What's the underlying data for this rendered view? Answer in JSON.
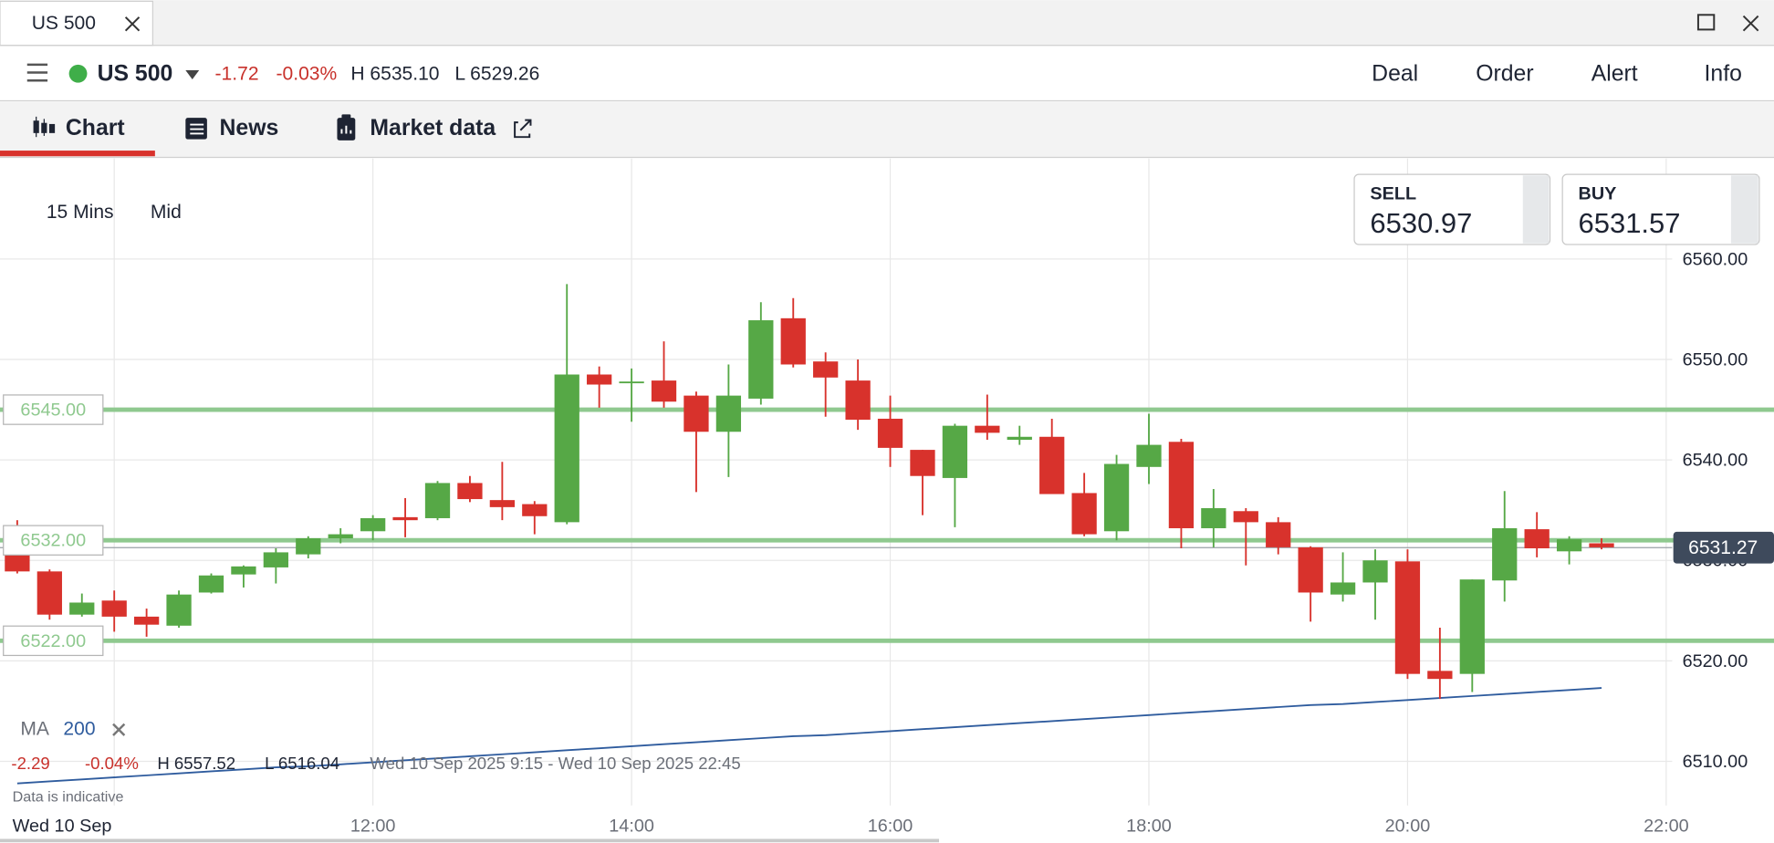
{
  "window": {
    "tab": "US 500"
  },
  "toolbar": {
    "market": "US 500",
    "change": "-1.72",
    "change_pct": "-0.03%",
    "high": "H 6535.10",
    "low": "L 6529.26",
    "actions": [
      "Deal",
      "Order",
      "Alert",
      "Info"
    ]
  },
  "tabs": [
    "Chart",
    "News",
    "Market data"
  ],
  "chart_controls": {
    "interval": "15 Mins",
    "price_type": "Mid"
  },
  "quote": {
    "sell_label": "SELL",
    "sell": "6530.97",
    "buy_label": "BUY",
    "buy": "6531.57"
  },
  "stats": {
    "change": "-2.29",
    "change_pct": "-0.04%",
    "high": "H 6557.52",
    "low": "L 6516.04",
    "range": "Wed 10 Sep 2025 9:15 - Wed 10 Sep 2025 22:45"
  },
  "note": "Data is indicative",
  "chart_data": {
    "type": "candlestick",
    "x": [
      "09:15",
      "09:30",
      "09:45",
      "10:00",
      "10:15",
      "10:30",
      "10:45",
      "11:00",
      "11:15",
      "11:30",
      "11:45",
      "12:00",
      "12:15",
      "12:30",
      "12:45",
      "13:00",
      "13:15",
      "13:30",
      "13:45",
      "14:00",
      "14:15",
      "14:30",
      "14:45",
      "15:00",
      "15:15",
      "15:30",
      "15:45",
      "16:00",
      "16:15",
      "16:30",
      "16:45",
      "17:00",
      "17:15",
      "17:30",
      "17:45",
      "18:00",
      "18:15",
      "18:30",
      "18:45",
      "19:00",
      "19:15",
      "19:30",
      "19:45",
      "20:00",
      "20:15",
      "20:30",
      "20:45",
      "21:00",
      "21:15",
      "21:30"
    ],
    "open": [
      6532.0,
      6528.9,
      6524.6,
      6526.0,
      6524.4,
      6523.5,
      6526.8,
      6528.6,
      6529.3,
      6530.6,
      6532.2,
      6532.9,
      6534.3,
      6534.2,
      6537.7,
      6536.0,
      6535.6,
      6533.8,
      6548.5,
      6547.7,
      6547.9,
      6546.4,
      6542.8,
      6546.1,
      6554.1,
      6549.8,
      6547.9,
      6544.1,
      6541.0,
      6538.2,
      6543.4,
      6542.0,
      6542.3,
      6536.7,
      6532.9,
      6539.3,
      6541.8,
      6533.2,
      6534.9,
      6533.8,
      6531.3,
      6526.6,
      6527.8,
      6529.9,
      6519.0,
      6518.7,
      6528.0,
      6533.1,
      6530.9,
      6531.7
    ],
    "high": [
      6534.0,
      6529.1,
      6526.7,
      6527.0,
      6525.2,
      6527.0,
      6528.7,
      6529.5,
      6531.2,
      6532.4,
      6533.2,
      6534.5,
      6536.2,
      6537.9,
      6538.4,
      6539.8,
      6535.9,
      6557.5,
      6549.3,
      6549.1,
      6551.8,
      6546.8,
      6549.5,
      6555.7,
      6556.1,
      6550.7,
      6550.0,
      6546.4,
      6541.0,
      6543.6,
      6546.5,
      6543.4,
      6544.1,
      6538.7,
      6540.5,
      6544.6,
      6542.1,
      6537.1,
      6535.2,
      6534.3,
      6531.4,
      6530.8,
      6531.1,
      6531.1,
      6523.3,
      6528.1,
      6536.9,
      6534.8,
      6532.4,
      6532.2
    ],
    "low": [
      6528.7,
      6524.1,
      6524.4,
      6522.9,
      6522.4,
      6523.3,
      6526.7,
      6527.3,
      6527.7,
      6530.2,
      6531.7,
      6532.0,
      6532.3,
      6534.0,
      6535.8,
      6534.0,
      6532.6,
      6533.6,
      6545.2,
      6543.8,
      6545.2,
      6536.8,
      6538.3,
      6545.5,
      6549.2,
      6544.3,
      6543.0,
      6539.3,
      6534.5,
      6533.3,
      6542.0,
      6541.5,
      6536.6,
      6532.4,
      6532.0,
      6537.6,
      6531.2,
      6531.3,
      6529.5,
      6530.6,
      6523.9,
      6525.9,
      6524.1,
      6518.2,
      6516.2,
      6516.9,
      6525.9,
      6530.3,
      6529.6,
      6531.1
    ],
    "close": [
      6528.9,
      6524.6,
      6525.8,
      6524.4,
      6523.6,
      6526.6,
      6528.5,
      6529.4,
      6530.8,
      6532.2,
      6532.6,
      6534.2,
      6534.0,
      6537.7,
      6536.1,
      6535.3,
      6534.4,
      6548.5,
      6547.5,
      6547.8,
      6545.8,
      6542.8,
      6546.4,
      6553.9,
      6549.5,
      6548.2,
      6544.0,
      6541.2,
      6538.4,
      6543.4,
      6542.7,
      6542.3,
      6536.6,
      6532.6,
      6539.6,
      6541.5,
      6533.2,
      6535.2,
      6533.8,
      6531.3,
      6526.8,
      6527.8,
      6530.0,
      6518.7,
      6518.2,
      6528.1,
      6533.2,
      6531.2,
      6532.1,
      6531.3
    ],
    "up_color": "#56a846",
    "down_color": "#d8322c",
    "ma": {
      "name": "MA",
      "period": 200,
      "color": "#2f5c9e",
      "values": [
        6507.8,
        6508.0,
        6508.2,
        6508.4,
        6508.6,
        6508.8,
        6509.0,
        6509.2,
        6509.4,
        6509.5,
        6509.7,
        6509.9,
        6510.1,
        6510.3,
        6510.5,
        6510.7,
        6510.9,
        6511.1,
        6511.3,
        6511.5,
        6511.7,
        6511.9,
        6512.1,
        6512.3,
        6512.5,
        6512.6,
        6512.8,
        6513.0,
        6513.2,
        6513.4,
        6513.6,
        6513.8,
        6514.0,
        6514.2,
        6514.4,
        6514.6,
        6514.8,
        6515.0,
        6515.2,
        6515.4,
        6515.6,
        6515.7,
        6515.9,
        6516.1,
        6516.3,
        6516.5,
        6516.7,
        6516.9,
        6517.1,
        6517.3
      ]
    },
    "levels": [
      {
        "value": 6545,
        "label": "6545.00"
      },
      {
        "value": 6532,
        "label": "6532.00"
      },
      {
        "value": 6522,
        "label": "6522.00"
      }
    ],
    "level_color": "#8fc98f",
    "last_price": 6531.27,
    "xlim": [
      "09:07",
      "22:50"
    ],
    "xticks": [
      {
        "value": "10:00",
        "label": "Wed 10 Sep"
      },
      "12:00",
      "14:00",
      "16:00",
      "18:00",
      "20:00",
      "22:00"
    ],
    "ylim": [
      6505.6,
      6570
    ],
    "yticks": [
      {
        "value": 6510,
        "label": "6510.00"
      },
      {
        "value": 6520,
        "label": "6520.00"
      },
      {
        "value": 6530,
        "label": "6530.00"
      },
      {
        "value": 6540,
        "label": "6540.00"
      },
      {
        "value": 6550,
        "label": "6550.00"
      },
      {
        "value": 6560,
        "label": "6560.00"
      }
    ],
    "grid": true
  }
}
